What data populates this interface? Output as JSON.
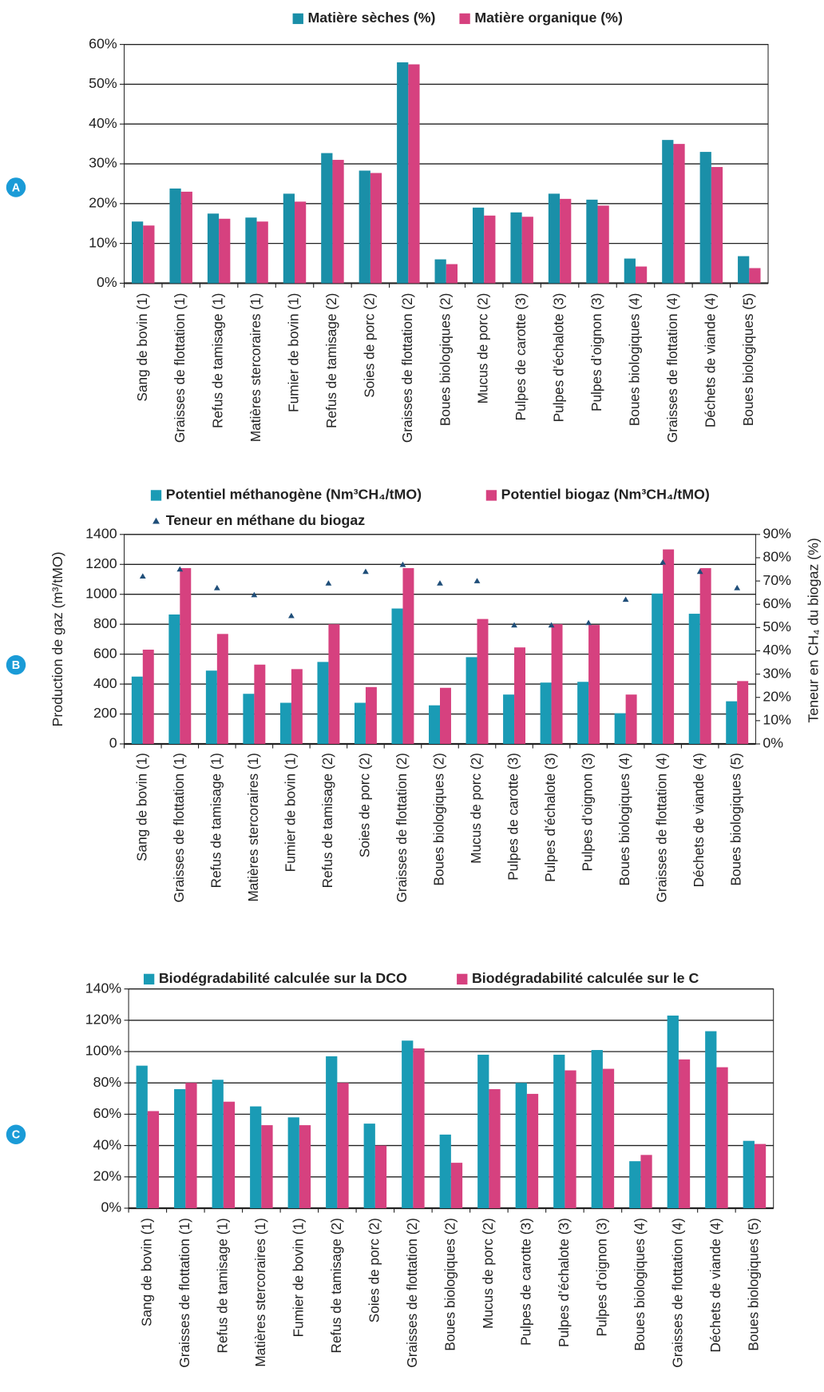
{
  "chart_data": [
    {
      "type": "bar",
      "panel": "A",
      "categories": [
        "Sang de bovin (1)",
        "Graisses de flottation (1)",
        "Refus de tamisage (1)",
        "Matières stercoraires (1)",
        "Fumier de bovin (1)",
        "Refus de tamisage (2)",
        "Soies de porc (2)",
        "Graisses de flottation (2)",
        "Boues biologiques (2)",
        "Mucus de porc (2)",
        "Pulpes de carotte (3)",
        "Pulpes d’échalote (3)",
        "Pulpes d’oignon (3)",
        "Boues biologiques (4)",
        "Graisses de flottation (4)",
        "Déchets de viande (4)",
        "Boues biologiques (5)"
      ],
      "series": [
        {
          "name": "Matière sèches (%)",
          "color": "#1a8fa8",
          "values": [
            15.5,
            23.8,
            17.5,
            16.5,
            22.5,
            32.7,
            28.3,
            55.5,
            6,
            19,
            17.8,
            22.5,
            21,
            6.2,
            36,
            33,
            6.8
          ]
        },
        {
          "name": "Matière organique (%)",
          "color": "#d6417f",
          "values": [
            14.5,
            23,
            16.2,
            15.5,
            20.5,
            31,
            27.7,
            55,
            4.8,
            17,
            16.7,
            21.2,
            19.5,
            4.2,
            35,
            29.2,
            3.8
          ]
        }
      ],
      "ylim": [
        0,
        60
      ],
      "yticks": [
        {
          "value": 0,
          "label": "0%"
        },
        {
          "value": 10,
          "label": "10%"
        },
        {
          "value": 20,
          "label": "20%"
        },
        {
          "value": 30,
          "label": "30%"
        },
        {
          "value": 40,
          "label": "40%"
        },
        {
          "value": 50,
          "label": "50%"
        },
        {
          "value": 60,
          "label": "60%"
        }
      ],
      "grid": true
    },
    {
      "type": "bar",
      "panel": "B",
      "ylabel": "Production de gaz (m³/tMO)",
      "y2label": "Teneur en CH₄ du biogaz (%)",
      "categories": [
        "Sang de bovin (1)",
        "Graisses de flottation (1)",
        "Refus de tamisage (1)",
        "Matières stercoraires (1)",
        "Fumier de bovin (1)",
        "Refus de tamisage (2)",
        "Soies de porc (2)",
        "Graisses de flottation (2)",
        "Boues biologiques (2)",
        "Mucus de porc (2)",
        "Pulpes de carotte (3)",
        "Pulpes d’échalote (3)",
        "Pulpes d’oignon (3)",
        "Boues biologiques (4)",
        "Graisses de flottation (4)",
        "Déchets de viande (4)",
        "Boues biologiques (5)"
      ],
      "series": [
        {
          "name": "Potentiel méthanogène (Nm³CH₄/tMO)",
          "color": "#1a9bb5",
          "values": [
            450,
            865,
            490,
            335,
            275,
            548,
            275,
            905,
            258,
            580,
            330,
            410,
            415,
            205,
            1005,
            870,
            285
          ]
        },
        {
          "name": "Potentiel biogaz (Nm³CH₄/tMO)",
          "color": "#d6417f",
          "values": [
            630,
            1175,
            735,
            530,
            500,
            800,
            380,
            1175,
            375,
            835,
            645,
            800,
            795,
            330,
            1300,
            1175,
            420
          ]
        },
        {
          "name": "Teneur en méthane du biogaz",
          "color": "#1f4e79",
          "type": "scatter",
          "axis": "y2",
          "values": [
            72,
            75,
            67,
            64,
            55,
            69,
            74,
            77,
            69,
            70,
            51,
            51,
            52,
            62,
            78,
            74,
            67
          ]
        }
      ],
      "ylim": [
        0,
        1400
      ],
      "yticks": [
        0,
        200,
        400,
        600,
        800,
        1000,
        1200,
        1400
      ],
      "y2lim": [
        0,
        90
      ],
      "y2ticks": [
        {
          "value": 0,
          "label": "0%"
        },
        {
          "value": 10,
          "label": "10%"
        },
        {
          "value": 20,
          "label": "20%"
        },
        {
          "value": 30,
          "label": "30%"
        },
        {
          "value": 40,
          "label": "40%"
        },
        {
          "value": 50,
          "label": "50%"
        },
        {
          "value": 60,
          "label": "60%"
        },
        {
          "value": 70,
          "label": "70%"
        },
        {
          "value": 80,
          "label": "80%"
        },
        {
          "value": 90,
          "label": "90%"
        }
      ],
      "grid": true
    },
    {
      "type": "bar",
      "panel": "C",
      "categories": [
        "Sang de bovin (1)",
        "Graisses de flottation (1)",
        "Refus de tamisage (1)",
        "Matières stercoraires (1)",
        "Fumier de bovin (1)",
        "Refus de tamisage (2)",
        "Soies de porc (2)",
        "Graisses de flottation (2)",
        "Boues biologiques (2)",
        "Mucus de porc (2)",
        "Pulpes de carotte (3)",
        "Pulpes d’échalote (3)",
        "Pulpes d’oignon (3)",
        "Boues biologiques (4)",
        "Graisses de flottation (4)",
        "Déchets de viande (4)",
        "Boues biologiques (5)"
      ],
      "series": [
        {
          "name": "Biodégradabilité calculée sur la DCO",
          "color": "#1a9bb5",
          "values": [
            91,
            76,
            82,
            65,
            58,
            97,
            54,
            107,
            47,
            98,
            80,
            98,
            101,
            30,
            123,
            113,
            43
          ]
        },
        {
          "name": "Biodégradabilité calculée sur le C",
          "color": "#d6417f",
          "values": [
            62,
            80,
            68,
            53,
            53,
            80,
            40,
            102,
            29,
            76,
            73,
            88,
            89,
            34,
            95,
            90,
            41
          ]
        }
      ],
      "ylim": [
        0,
        140
      ],
      "yticks": [
        {
          "value": 0,
          "label": "0%"
        },
        {
          "value": 20,
          "label": "20%"
        },
        {
          "value": 40,
          "label": "40%"
        },
        {
          "value": 60,
          "label": "60%"
        },
        {
          "value": 80,
          "label": "80%"
        },
        {
          "value": 100,
          "label": "100%"
        },
        {
          "value": 120,
          "label": "120%"
        },
        {
          "value": 140,
          "label": "140%"
        }
      ],
      "grid": true
    }
  ]
}
